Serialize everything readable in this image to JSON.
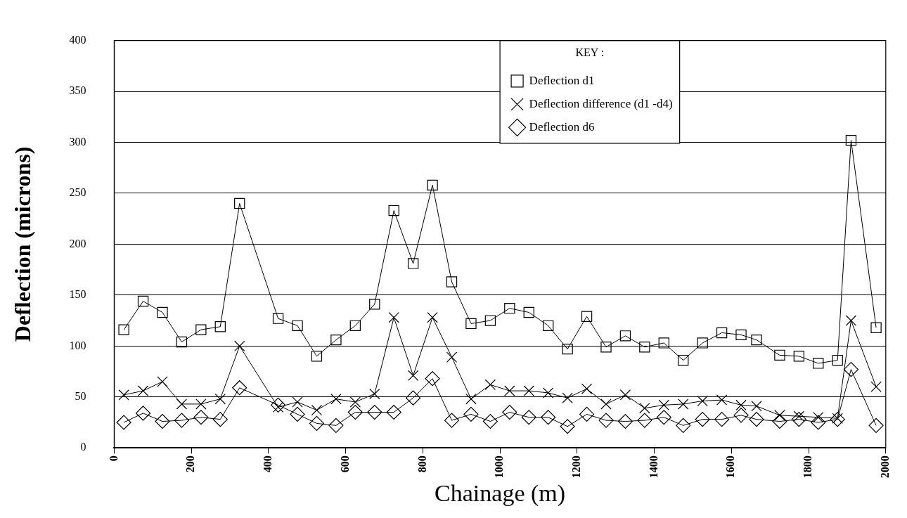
{
  "chart_data": {
    "type": "line",
    "xlabel": "Chainage (m)",
    "ylabel": "Deflection (microns)",
    "legend_title": "KEY :",
    "x": [
      25,
      75,
      125,
      175,
      225,
      275,
      325,
      425,
      475,
      525,
      575,
      625,
      675,
      725,
      775,
      825,
      875,
      925,
      975,
      1025,
      1075,
      1125,
      1175,
      1225,
      1275,
      1325,
      1375,
      1425,
      1475,
      1525,
      1575,
      1625,
      1665,
      1725,
      1775,
      1825,
      1875,
      1910,
      1975
    ],
    "series": [
      {
        "name": "Deflection d1",
        "color": "#000000",
        "marker": "square",
        "values": [
          116,
          144,
          133,
          104,
          116,
          119,
          240,
          127,
          120,
          90,
          106,
          120,
          141,
          233,
          181,
          258,
          163,
          122,
          125,
          137,
          133,
          120,
          97,
          129,
          99,
          110,
          99,
          103,
          86,
          103,
          113,
          111,
          106,
          91,
          90,
          83,
          86,
          302,
          118
        ]
      },
      {
        "name": "Deflection difference (d1 -d4)",
        "color": "#000000",
        "marker": "cross",
        "values": [
          52,
          56,
          65,
          43,
          43,
          48,
          100,
          40,
          45,
          37,
          48,
          45,
          53,
          128,
          71,
          128,
          89,
          48,
          62,
          56,
          56,
          54,
          49,
          58,
          43,
          52,
          39,
          42,
          43,
          46,
          47,
          42,
          41,
          32,
          31,
          30,
          29,
          125,
          60
        ]
      },
      {
        "name": "Deflection d6",
        "color": "#000000",
        "marker": "diamond",
        "values": [
          25,
          34,
          26,
          27,
          30,
          28,
          59,
          42,
          33,
          24,
          22,
          35,
          35,
          35,
          49,
          68,
          27,
          33,
          26,
          35,
          30,
          30,
          21,
          33,
          27,
          26,
          27,
          30,
          22,
          28,
          28,
          32,
          28,
          26,
          28,
          25,
          28,
          77,
          22
        ]
      }
    ],
    "xlim": [
      0,
      2000
    ],
    "xticks": [
      0,
      200,
      400,
      600,
      800,
      1000,
      1200,
      1400,
      1600,
      1800,
      2000
    ],
    "ylim": [
      0,
      400
    ],
    "yticks": [
      0,
      50,
      100,
      150,
      200,
      250,
      300,
      350,
      400
    ],
    "grid": "y",
    "legend": "top"
  }
}
